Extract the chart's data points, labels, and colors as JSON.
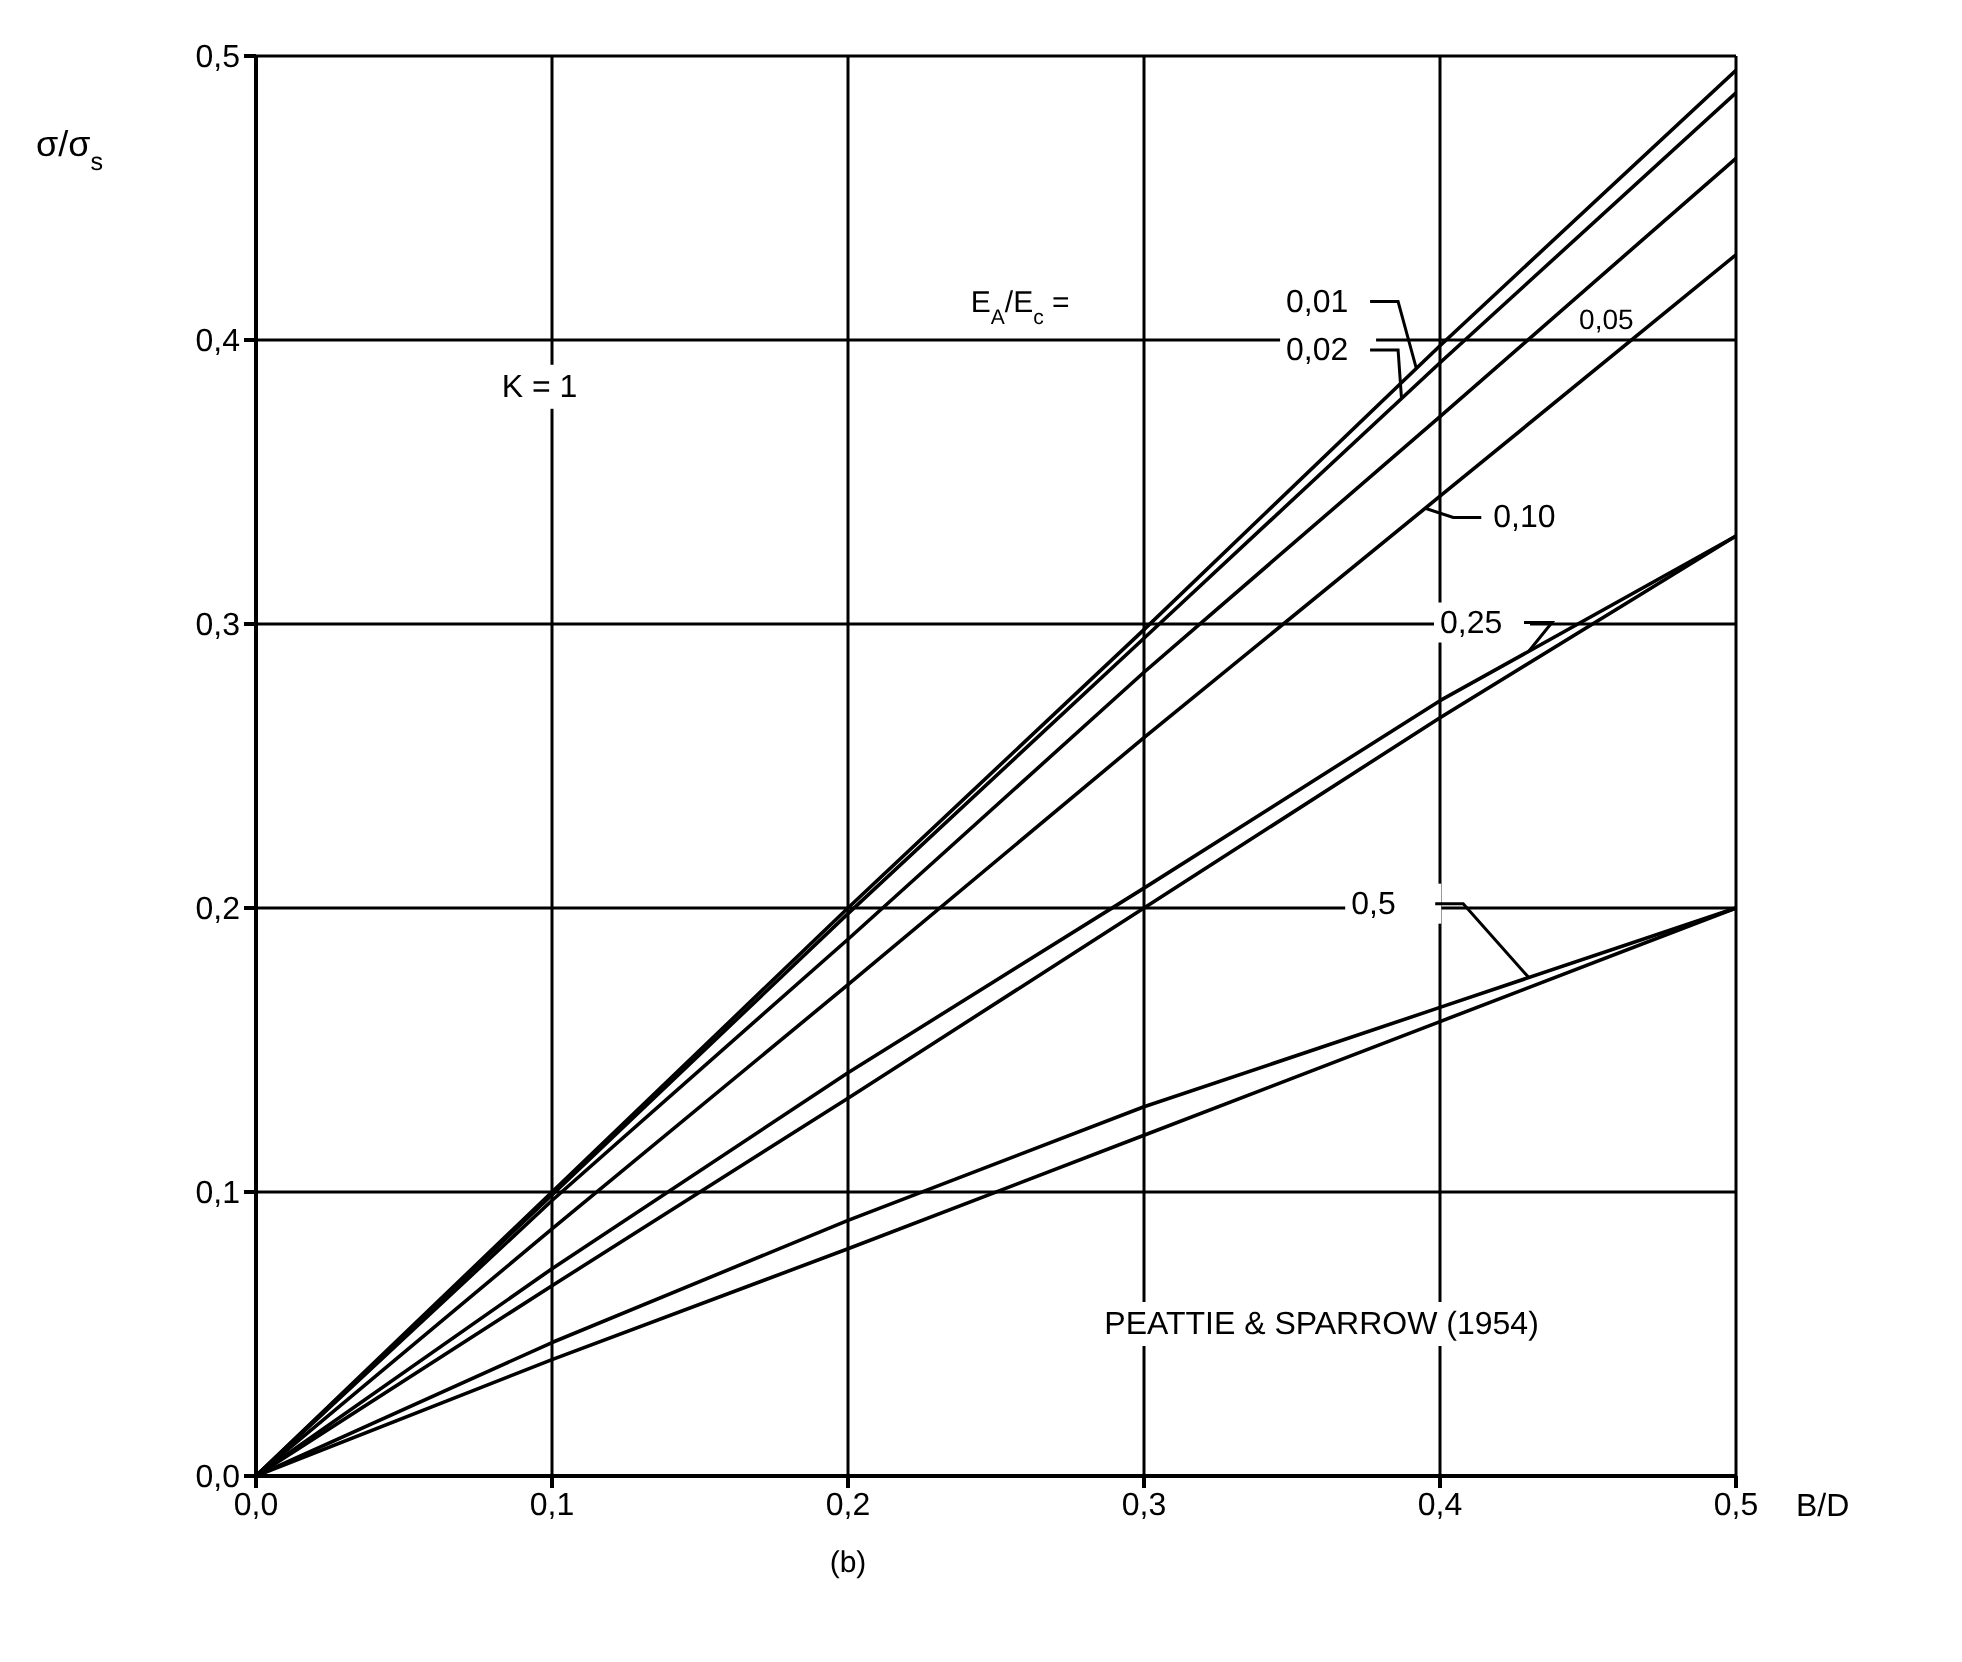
{
  "chart_data": {
    "type": "line",
    "x": [
      0,
      0.1,
      0.2,
      0.3,
      0.4,
      0.5
    ],
    "series": [
      {
        "name": "0,01",
        "color": "#000000",
        "values": [
          0,
          0.1,
          0.2,
          0.298,
          0.398,
          0.495
        ]
      },
      {
        "name": "0,02",
        "color": "#000000",
        "values": [
          0,
          0.099,
          0.198,
          0.295,
          0.392,
          0.487
        ]
      },
      {
        "name": "0,05",
        "color": "#000000",
        "values": [
          0,
          0.097,
          0.189,
          0.283,
          0.373,
          0.464
        ]
      },
      {
        "name": "0,10",
        "color": "#000000",
        "values": [
          0,
          0.087,
          0.173,
          0.26,
          0.345,
          0.43
        ]
      },
      {
        "name": "0,25",
        "color": "#000000",
        "values": [
          0,
          0.073,
          0.142,
          0.207,
          0.273,
          0.331
        ]
      },
      {
        "color": "#000000",
        "values": [
          0,
          0.067,
          0.133,
          0.2,
          0.267,
          0.331
        ]
      },
      {
        "name": "0,5",
        "color": "#000000",
        "values": [
          0,
          0.047,
          0.09,
          0.13,
          0.165,
          0.2
        ]
      },
      {
        "color": "#000000",
        "values": [
          0,
          0.041,
          0.08,
          0.12,
          0.16,
          0.2
        ]
      }
    ],
    "xlabel": "B/D",
    "ylabel": "σ/σ$_{s}$",
    "legend_title": "E$_{A}$/E$_{c}$ =",
    "annotations": [
      "K = 1",
      "PEATTIE & SPARROW (1954)",
      "(b)"
    ],
    "xlim": [
      0,
      0.5
    ],
    "ylim": [
      0,
      0.5
    ],
    "xticks": [
      {
        "value": 0,
        "label": "0,0"
      },
      {
        "value": 0.1,
        "label": "0,1"
      },
      {
        "value": 0.2,
        "label": "0,2"
      },
      {
        "value": 0.3,
        "label": "0,3"
      },
      {
        "value": 0.4,
        "label": "0,4"
      },
      {
        "value": 0.5,
        "label": "0,5"
      }
    ],
    "yticks": [
      {
        "value": 0,
        "label": "0,0"
      },
      {
        "value": 0.1,
        "label": "0,1"
      },
      {
        "value": 0.2,
        "label": "0,2"
      },
      {
        "value": 0.3,
        "label": "0,3"
      },
      {
        "value": 0.4,
        "label": "0,4"
      },
      {
        "value": 0.5,
        "label": "0,5"
      }
    ],
    "grid": true,
    "legend": "top right",
    "marker": "none",
    "line_style": "solid"
  }
}
